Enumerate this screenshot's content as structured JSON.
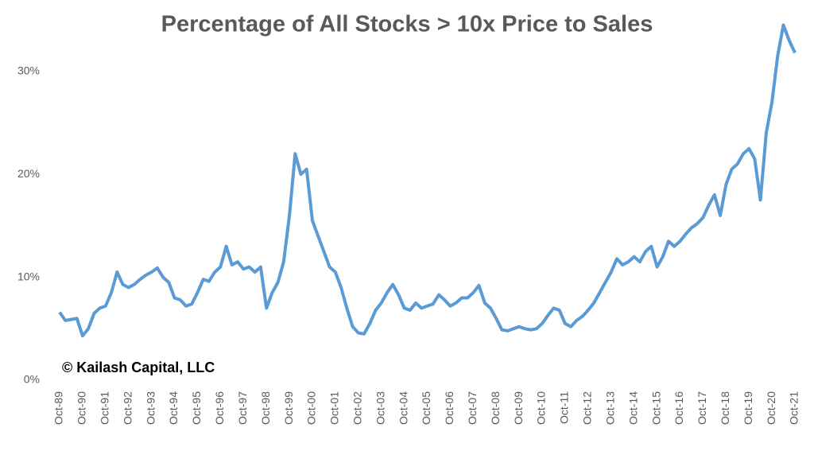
{
  "chart_data": {
    "type": "line",
    "title": "Percentage of All Stocks > 10x Price to Sales",
    "annotation": "© Kailash Capital, LLC",
    "categories": [
      "Oct-89",
      null,
      null,
      null,
      "Oct-90",
      null,
      null,
      null,
      "Oct-91",
      null,
      null,
      null,
      "Oct-92",
      null,
      null,
      null,
      "Oct-93",
      null,
      null,
      null,
      "Oct-94",
      null,
      null,
      null,
      "Oct-95",
      null,
      null,
      null,
      "Oct-96",
      null,
      null,
      null,
      "Oct-97",
      null,
      null,
      null,
      "Oct-98",
      null,
      null,
      null,
      "Oct-99",
      null,
      null,
      null,
      "Oct-00",
      null,
      null,
      null,
      "Oct-01",
      null,
      null,
      null,
      "Oct-02",
      null,
      null,
      null,
      "Oct-03",
      null,
      null,
      null,
      "Oct-04",
      null,
      null,
      null,
      "Oct-05",
      null,
      null,
      null,
      "Oct-06",
      null,
      null,
      null,
      "Oct-07",
      null,
      null,
      null,
      "Oct-08",
      null,
      null,
      null,
      "Oct-09",
      null,
      null,
      null,
      "Oct-10",
      null,
      null,
      null,
      "Oct-11",
      null,
      null,
      null,
      "Oct-12",
      null,
      null,
      null,
      "Oct-13",
      null,
      null,
      null,
      "Oct-14",
      null,
      null,
      null,
      "Oct-15",
      null,
      null,
      null,
      "Oct-16",
      null,
      null,
      null,
      "Oct-17",
      null,
      null,
      null,
      "Oct-18",
      null,
      null,
      null,
      "Oct-19",
      null,
      null,
      null,
      "Oct-20",
      null,
      null,
      null,
      "Oct-21"
    ],
    "values": [
      6.6,
      5.8,
      5.9,
      6.0,
      4.3,
      5.0,
      6.5,
      7.0,
      7.2,
      8.5,
      10.5,
      9.3,
      9.0,
      9.3,
      9.8,
      10.2,
      10.5,
      10.9,
      10.0,
      9.5,
      8.0,
      7.8,
      7.2,
      7.4,
      8.5,
      9.8,
      9.6,
      10.5,
      11.0,
      13.0,
      11.2,
      11.5,
      10.8,
      11.0,
      10.5,
      11.0,
      7.0,
      8.5,
      9.5,
      11.5,
      16.0,
      22.0,
      20.0,
      20.5,
      15.5,
      14.0,
      12.5,
      11.0,
      10.5,
      9.0,
      7.0,
      5.2,
      4.6,
      4.5,
      5.5,
      6.8,
      7.5,
      8.5,
      9.3,
      8.3,
      7.0,
      6.8,
      7.5,
      7.0,
      7.2,
      7.4,
      8.3,
      7.8,
      7.2,
      7.5,
      8.0,
      8.0,
      8.5,
      9.2,
      7.5,
      7.0,
      6.0,
      4.9,
      4.8,
      5.0,
      5.2,
      5.0,
      4.9,
      5.0,
      5.5,
      6.3,
      7.0,
      6.8,
      5.5,
      5.2,
      5.8,
      6.2,
      6.8,
      7.5,
      8.5,
      9.5,
      10.5,
      11.8,
      11.2,
      11.5,
      12.0,
      11.5,
      12.5,
      13.0,
      11.0,
      12.0,
      13.5,
      13.0,
      13.5,
      14.2,
      14.8,
      15.2,
      15.8,
      17.0,
      18.0,
      16.0,
      19.0,
      20.5,
      21.0,
      22.0,
      22.5,
      21.5,
      17.5,
      24.0,
      27.0,
      31.5,
      34.5,
      33.0,
      31.8
    ],
    "color": "#5b9bd5",
    "ylim": [
      0,
      35
    ],
    "yticks": [
      {
        "value": 0,
        "label": "0%"
      },
      {
        "value": 10,
        "label": "10%"
      },
      {
        "value": 20,
        "label": "20%"
      },
      {
        "value": 30,
        "label": "30%"
      }
    ],
    "grid": false
  }
}
